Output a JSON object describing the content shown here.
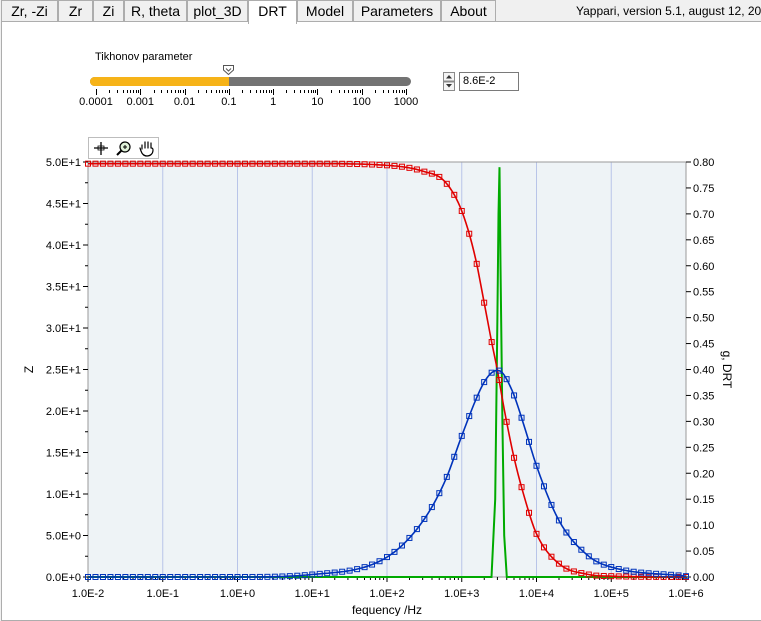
{
  "tabs": [
    {
      "label": "Zr, -Zi",
      "active": false
    },
    {
      "label": "Zr",
      "active": false
    },
    {
      "label": "Zi",
      "active": false
    },
    {
      "label": "R, theta",
      "active": false
    },
    {
      "label": "plot_3D",
      "active": false
    },
    {
      "label": "DRT",
      "active": true
    },
    {
      "label": "Model",
      "active": false
    },
    {
      "label": "Parameters",
      "active": false
    },
    {
      "label": "About",
      "active": false
    }
  ],
  "version_text": "Yappari, version 5.1, august 12, 2023",
  "tikhonov": {
    "label": "Tikhonov parameter",
    "scale_labels": [
      "0.0001",
      "0.001",
      "0.01",
      "0.1",
      "1",
      "10",
      "100",
      "1000"
    ],
    "value": 0.1,
    "numeric_value": "8.6E-2"
  },
  "toolbar": {
    "icons": [
      "cursor-move-icon",
      "zoom-icon",
      "pan-hand-icon"
    ]
  },
  "colors": {
    "z_real": "#e00000",
    "z_imag": "#0033bb",
    "drt": "#00aa00",
    "slider_fill": "#f6b318",
    "plot_bg": "#eef3f6",
    "grid": "#b8c4e8"
  },
  "chart_data": {
    "type": "line",
    "xlabel": "fequency /Hz",
    "ylabel_left": "Z",
    "ylabel_right": "g, DRT",
    "x_scale": "log",
    "xlim": [
      0.01,
      1000000
    ],
    "x_tick_labels": [
      "1.0E-2",
      "1.0E-1",
      "1.0E+0",
      "1.0E+1",
      "1.0E+2",
      "1.0E+3",
      "1.0E+4",
      "1.0E+5",
      "1.0E+6"
    ],
    "ylim_left": [
      0,
      50
    ],
    "y_left_tick_labels": [
      "0.0E+0",
      "5.0E+0",
      "1.0E+1",
      "1.5E+1",
      "2.0E+1",
      "2.5E+1",
      "3.0E+1",
      "3.5E+1",
      "4.0E+1",
      "4.5E+1",
      "5.0E+1"
    ],
    "ylim_right": [
      0,
      0.8
    ],
    "y_right_tick_labels": [
      "0.00",
      "0.05",
      "0.10",
      "0.15",
      "0.20",
      "0.25",
      "0.30",
      "0.35",
      "0.40",
      "0.45",
      "0.50",
      "0.55",
      "0.60",
      "0.65",
      "0.70",
      "0.75",
      "0.80"
    ],
    "grid": "vertical",
    "series": [
      {
        "axis": "left",
        "color": "#e00000",
        "markers": "square",
        "x": [
          0.01,
          0.1,
          1,
          10,
          100,
          300,
          600,
          1000,
          1500,
          2000,
          2500,
          3000,
          3500,
          4000,
          5000,
          7000,
          10000,
          20000,
          50000,
          100000,
          1000000
        ],
        "y": [
          49.8,
          49.8,
          49.8,
          49.8,
          49.6,
          48.9,
          47.6,
          44.1,
          38.7,
          33.0,
          28.4,
          24.9,
          21.4,
          18.6,
          14.4,
          9.4,
          5.2,
          1.6,
          0.3,
          0.1,
          0.0
        ]
      },
      {
        "axis": "left",
        "color": "#0033bb",
        "markers": "square",
        "x": [
          0.01,
          1,
          10,
          100,
          300,
          600,
          1000,
          1500,
          2000,
          2500,
          3000,
          3500,
          4000,
          5000,
          7000,
          10000,
          20000,
          50000,
          100000,
          1000000
        ],
        "y": [
          0.0,
          0.0,
          0.3,
          2.4,
          6.7,
          11.6,
          17.0,
          21.1,
          23.5,
          24.6,
          24.9,
          24.6,
          23.8,
          21.9,
          17.9,
          13.4,
          6.8,
          2.5,
          1.2,
          0.1
        ]
      },
      {
        "axis": "right",
        "color": "#00aa00",
        "markers": "none",
        "x": [
          0.01,
          2500,
          2800,
          3000,
          3100,
          3200,
          3300,
          3500,
          3700,
          4000,
          1000000
        ],
        "y": [
          0.0,
          0.0,
          0.15,
          0.5,
          0.7,
          0.79,
          0.6,
          0.3,
          0.08,
          0.0,
          0.0
        ]
      }
    ]
  }
}
